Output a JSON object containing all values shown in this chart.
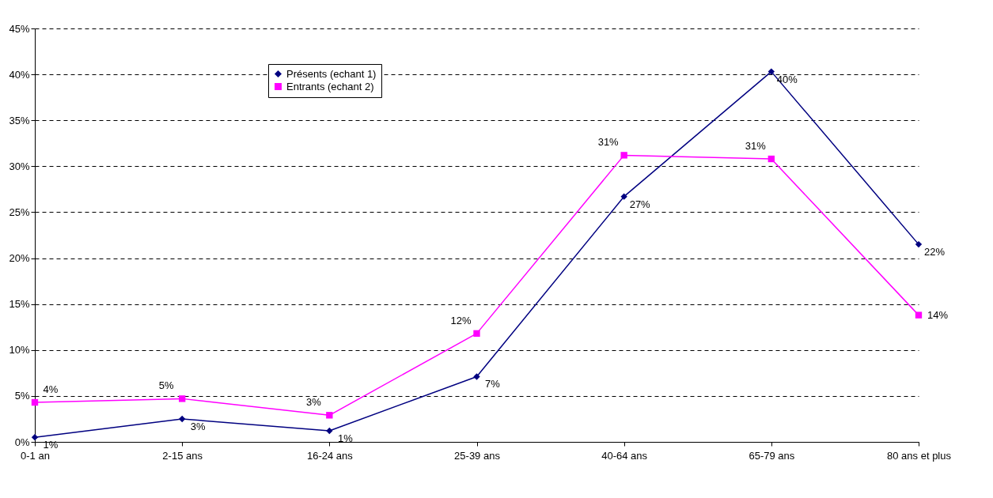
{
  "chart_data": {
    "type": "line",
    "categories": [
      "0-1 an",
      "2-15 ans",
      "16-24 ans",
      "25-39 ans",
      "40-64 ans",
      "65-79 ans",
      "80 ans et plus"
    ],
    "series": [
      {
        "name": "Présents (echant 1)",
        "color": "#000080",
        "marker": "diamond",
        "values": [
          0.5,
          2.5,
          1.2,
          7.1,
          26.7,
          40.3,
          21.5
        ],
        "value_labels": [
          "1%",
          "3%",
          "1%",
          "7%",
          "27%",
          "40%",
          "22%"
        ]
      },
      {
        "name": "Entrants (echant 2)",
        "color": "#ff00ff",
        "marker": "square",
        "values": [
          4.3,
          4.7,
          2.9,
          11.8,
          31.2,
          30.8,
          13.8
        ],
        "value_labels": [
          "4%",
          "5%",
          "3%",
          "12%",
          "31%",
          "31%",
          "14%"
        ]
      }
    ],
    "ylim": [
      0,
      45
    ],
    "yticks": [
      {
        "value": 0,
        "label": "0%"
      },
      {
        "value": 5,
        "label": "5%"
      },
      {
        "value": 10,
        "label": "10%"
      },
      {
        "value": 15,
        "label": "15%"
      },
      {
        "value": 20,
        "label": "20%"
      },
      {
        "value": 25,
        "label": "25%"
      },
      {
        "value": 30,
        "label": "30%"
      },
      {
        "value": 35,
        "label": "35%"
      },
      {
        "value": 40,
        "label": "40%"
      },
      {
        "value": 45,
        "label": "45%"
      }
    ],
    "grid": "y",
    "line_style": "solid",
    "legend": "top left"
  }
}
